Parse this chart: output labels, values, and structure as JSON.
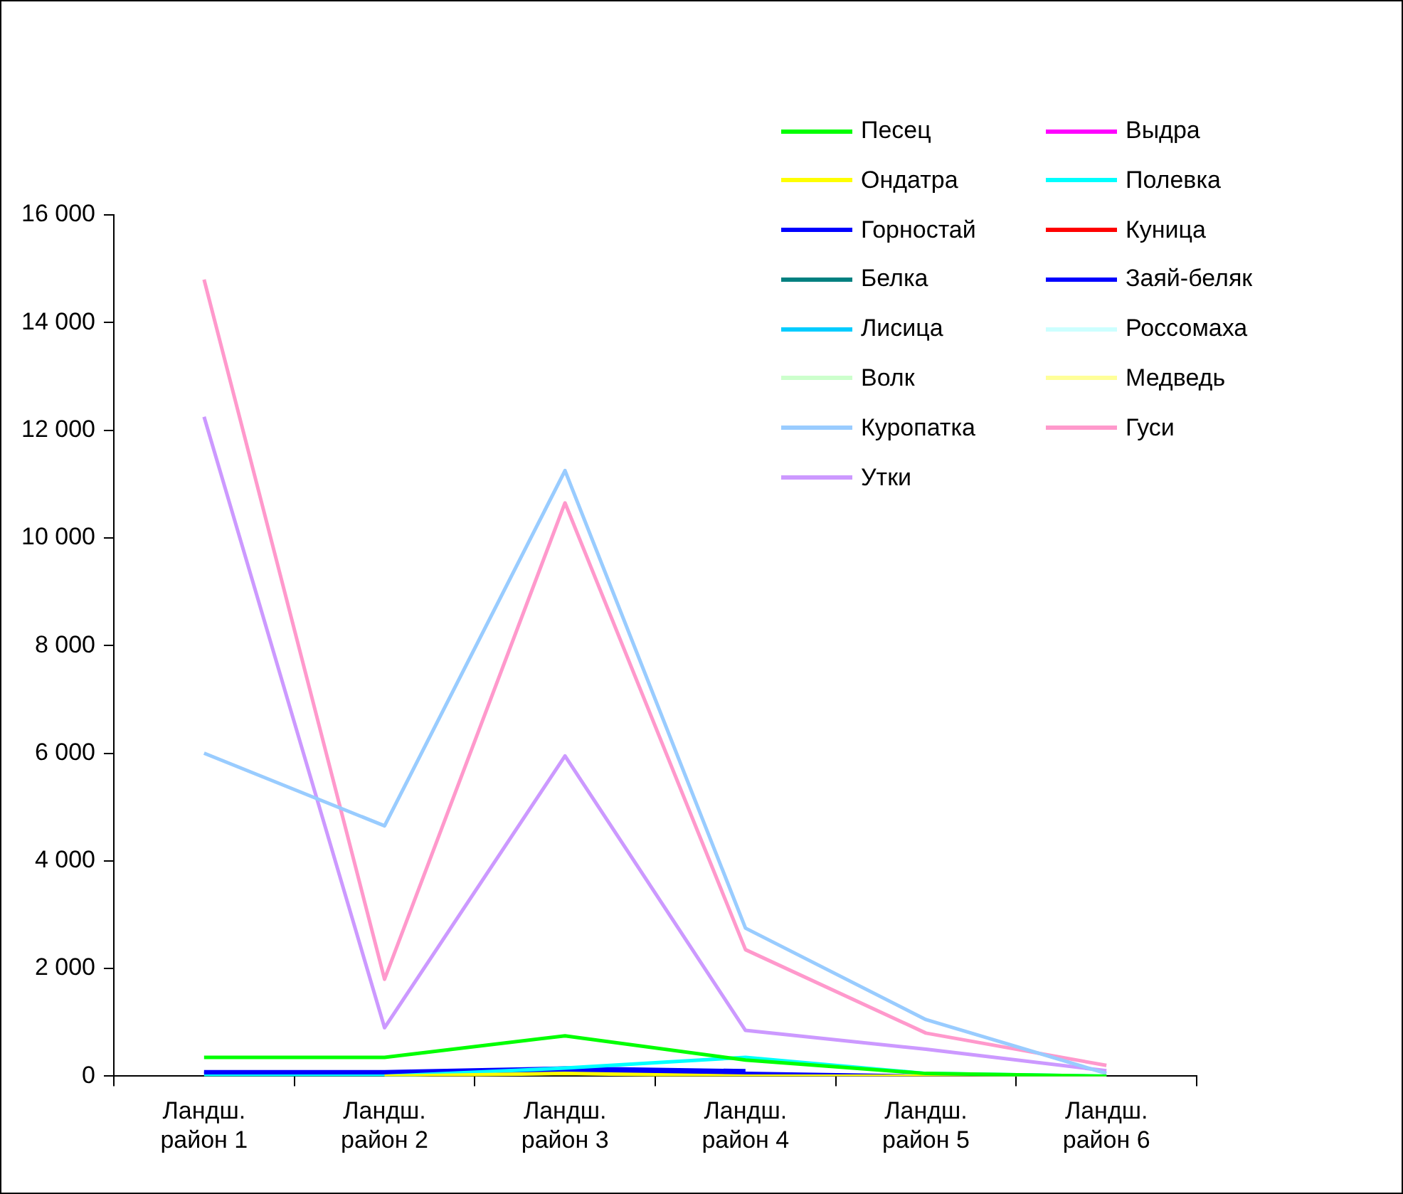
{
  "chart_data": {
    "type": "line",
    "legend": "top right",
    "grid": false,
    "marker": "none",
    "line_style": "solid",
    "categories": [
      "Ландш.\nрайон 1",
      "Ландш.\nрайон 2",
      "Ландш.\nрайон 3",
      "Ландш.\nрайон 4",
      "Ландш.\nрайон 5",
      "Ландш.\nрайон 6"
    ],
    "ylim": [
      0,
      16000
    ],
    "yticks": [
      {
        "value": 0,
        "label": "0"
      },
      {
        "value": 2000,
        "label": "2 000"
      },
      {
        "value": 4000,
        "label": "4 000"
      },
      {
        "value": 6000,
        "label": "6 000"
      },
      {
        "value": 8000,
        "label": "8 000"
      },
      {
        "value": 10000,
        "label": "10 000"
      },
      {
        "value": 12000,
        "label": "12 000"
      },
      {
        "value": 14000,
        "label": "14 000"
      },
      {
        "value": 16000,
        "label": "16 000"
      }
    ],
    "series": [
      {
        "name": "Песец",
        "color": "#00ff00",
        "values": [
          350,
          350,
          750,
          300,
          50,
          0
        ]
      },
      {
        "name": "Выдра",
        "color": "#ff00ff",
        "values": [
          null,
          null,
          null,
          null,
          null,
          null
        ]
      },
      {
        "name": "Ондатра",
        "color": "#ffff00",
        "values": [
          null,
          0,
          50,
          0,
          0,
          0
        ]
      },
      {
        "name": "Полевка",
        "color": "#00ffff",
        "values": [
          0,
          0,
          150,
          350,
          50,
          0
        ]
      },
      {
        "name": "Горностай",
        "color": "#0000ff",
        "values": [
          50,
          50,
          100,
          50,
          0,
          0
        ]
      },
      {
        "name": "Куница",
        "color": "#ff0000",
        "values": [
          null,
          null,
          null,
          null,
          null,
          null
        ]
      },
      {
        "name": "Белка",
        "color": "#008080",
        "values": [
          null,
          null,
          null,
          null,
          null,
          null
        ]
      },
      {
        "name": "Заяй-беляк",
        "color": "#0000ff",
        "values": [
          80,
          80,
          150,
          100,
          null,
          null
        ]
      },
      {
        "name": "Лисица",
        "color": "#00ccff",
        "values": [
          null,
          null,
          null,
          null,
          null,
          null
        ]
      },
      {
        "name": "Россомаха",
        "color": "#ccffff",
        "values": [
          null,
          null,
          null,
          null,
          null,
          null
        ]
      },
      {
        "name": "Волк",
        "color": "#ccffcc",
        "values": [
          null,
          null,
          null,
          null,
          null,
          null
        ]
      },
      {
        "name": "Медведь",
        "color": "#ffff99",
        "values": [
          null,
          null,
          null,
          null,
          null,
          null
        ]
      },
      {
        "name": "Куропатка",
        "color": "#99ccff",
        "values": [
          6000,
          4650,
          11250,
          2750,
          1050,
          50
        ]
      },
      {
        "name": "Гуси",
        "color": "#ff99cc",
        "values": [
          14800,
          1800,
          10650,
          2350,
          800,
          200
        ]
      },
      {
        "name": "Утки",
        "color": "#cc99ff",
        "values": [
          12250,
          900,
          5950,
          850,
          500,
          100
        ]
      }
    ]
  }
}
